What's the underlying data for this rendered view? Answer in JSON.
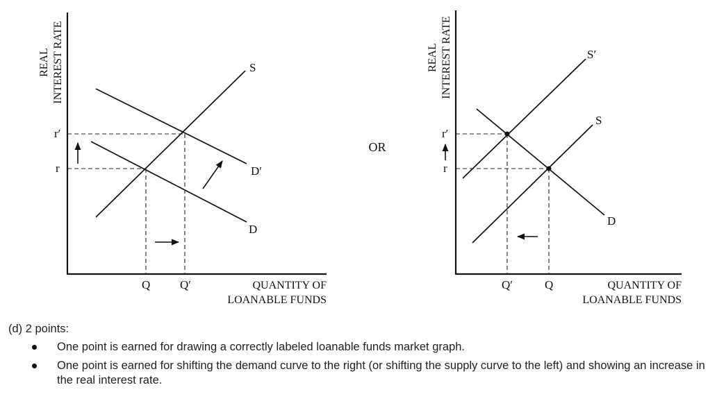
{
  "left_graph": {
    "y_axis_label_line1": "REAL",
    "y_axis_label_line2": "INTEREST RATE",
    "x_axis_label_line1": "QUANTITY OF",
    "x_axis_label_line2": "LOANABLE FUNDS",
    "supply_label": "S",
    "demand_label": "D",
    "demand_new_label": "D′",
    "rate_label": "r",
    "rate_new_label": "r′",
    "qty_label": "Q",
    "qty_new_label": "Q′"
  },
  "separator": "OR",
  "right_graph": {
    "y_axis_label_line1": "REAL",
    "y_axis_label_line2": "INTEREST RATE",
    "x_axis_label_line1": "QUANTITY OF",
    "x_axis_label_line2": "LOANABLE FUNDS",
    "supply_label": "S",
    "supply_new_label": "S′",
    "demand_label": "D",
    "rate_label": "r",
    "rate_new_label": "r′",
    "qty_label": "Q",
    "qty_new_label": "Q′"
  },
  "scoring": {
    "heading": "(d)  2 points:",
    "bullets": [
      "One point is earned for drawing a correctly labeled loanable funds market graph.",
      "One point is earned for shifting the demand curve to the right (or shifting the supply curve to the left) and showing an increase in the real interest rate."
    ]
  }
}
